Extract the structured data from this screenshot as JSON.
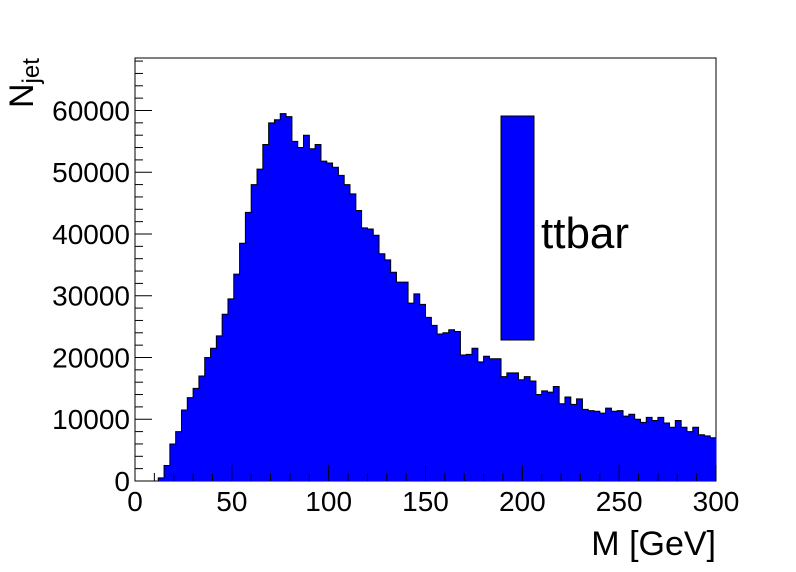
{
  "chart_data": {
    "type": "bar",
    "title": "",
    "xlabel": "M [GeV]",
    "ylabel_main": "N",
    "ylabel_sub": "jet",
    "xlim": [
      0,
      300
    ],
    "ylim": [
      0,
      68500
    ],
    "bin_width": 3,
    "x_ticks": [
      0,
      50,
      100,
      150,
      200,
      250,
      300
    ],
    "x_tick_labels": [
      "0",
      "50",
      "100",
      "150",
      "200",
      "250",
      "300"
    ],
    "y_ticks": [
      0,
      10000,
      20000,
      30000,
      40000,
      50000,
      60000
    ],
    "y_tick_labels": [
      "0",
      "10000",
      "20000",
      "30000",
      "40000",
      "50000",
      "60000"
    ],
    "grid": false,
    "legend_placement": "top-right",
    "series": [
      {
        "name": "ttbar",
        "color": "#0000ff",
        "bin_start": [
          0,
          3,
          6,
          9,
          12,
          15,
          18,
          21,
          24,
          27,
          30,
          33,
          36,
          39,
          42,
          45,
          48,
          51,
          54,
          57,
          60,
          63,
          66,
          69,
          72,
          75,
          78,
          81,
          84,
          87,
          90,
          93,
          96,
          99,
          102,
          105,
          108,
          111,
          114,
          117,
          120,
          123,
          126,
          129,
          132,
          135,
          138,
          141,
          144,
          147,
          150,
          153,
          156,
          159,
          162,
          165,
          168,
          171,
          174,
          177,
          180,
          183,
          186,
          189,
          192,
          195,
          198,
          201,
          204,
          207,
          210,
          213,
          216,
          219,
          222,
          225,
          228,
          231,
          234,
          237,
          240,
          243,
          246,
          249,
          252,
          255,
          258,
          261,
          264,
          267,
          270,
          273,
          276,
          279,
          282,
          285,
          288,
          291,
          294,
          297
        ],
        "values": [
          0,
          0,
          0,
          0,
          500,
          2500,
          6000,
          8000,
          11500,
          13500,
          15000,
          17000,
          20000,
          21500,
          23500,
          27000,
          29500,
          33500,
          38500,
          43500,
          48000,
          50500,
          54500,
          58000,
          58500,
          59500,
          59000,
          55000,
          54000,
          56000,
          53800,
          54500,
          51800,
          51500,
          50800,
          49500,
          48000,
          46500,
          43800,
          41000,
          40800,
          39800,
          36800,
          35800,
          33800,
          32200,
          32200,
          28800,
          30300,
          28600,
          26500,
          25200,
          23800,
          24000,
          24500,
          24200,
          20400,
          20500,
          21500,
          19300,
          20200,
          19800,
          19800,
          16900,
          17500,
          17500,
          16400,
          16900,
          16200,
          14000,
          14600,
          14400,
          15300,
          12500,
          13600,
          12400,
          13300,
          11600,
          11400,
          11300,
          11000,
          11800,
          11300,
          11400,
          10500,
          10800,
          10000,
          9500,
          10300,
          9800,
          10300,
          9400,
          8700,
          9800,
          8700,
          8000,
          8700,
          7500,
          7300,
          7000
        ]
      }
    ]
  }
}
